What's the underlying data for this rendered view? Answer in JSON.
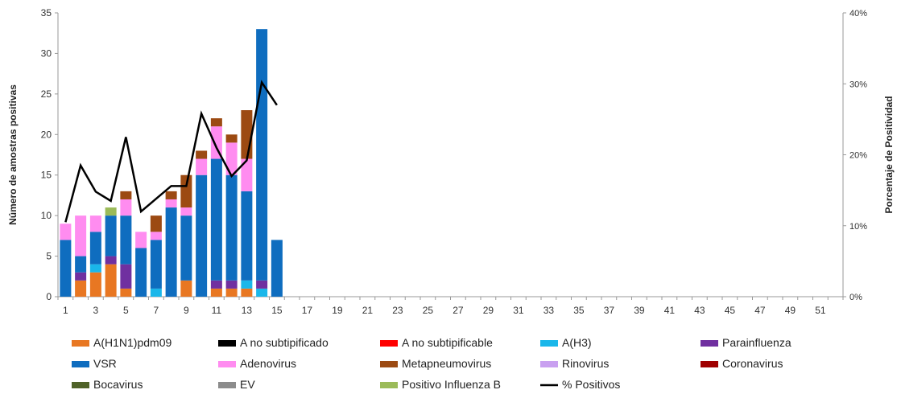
{
  "chart_data": {
    "type": "bar",
    "title": "",
    "xlabel": "",
    "ylabel": "Número de amostras positivas",
    "y2label": "Porcentaje de Positividad",
    "ylim": [
      0,
      35
    ],
    "y2lim": [
      0,
      40
    ],
    "y_ticks": [
      0,
      5,
      10,
      15,
      20,
      25,
      30,
      35
    ],
    "y_tick_labels": [
      "0",
      "5",
      "10",
      "15",
      "20",
      "25",
      "30",
      "35"
    ],
    "y2_ticks": [
      0,
      10,
      20,
      30,
      40
    ],
    "y2_tick_labels": [
      "0%",
      "10%",
      "20%",
      "30%",
      "40%"
    ],
    "x_tick_labels": [
      "1",
      "3",
      "5",
      "7",
      "9",
      "11",
      "13",
      "15",
      "17",
      "19",
      "21",
      "23",
      "25",
      "27",
      "29",
      "31",
      "33",
      "35",
      "37",
      "39",
      "41",
      "43",
      "45",
      "47",
      "49",
      "51"
    ],
    "x_weeks": 52,
    "stacked": true,
    "grid": false,
    "legend_position": "bottom",
    "categories": [
      1,
      2,
      3,
      4,
      5,
      6,
      7,
      8,
      9,
      10,
      11,
      12,
      13,
      14,
      15
    ],
    "series": [
      {
        "name": "A(H1N1)pdm09",
        "color": "#E87722",
        "values": [
          0,
          2,
          3,
          4,
          1,
          0,
          0,
          0,
          2,
          0,
          1,
          1,
          1,
          0,
          0
        ]
      },
      {
        "name": "A no subtipificado",
        "color": "#000000",
        "values": [
          0,
          0,
          0,
          0,
          0,
          0,
          0,
          0,
          0,
          0,
          0,
          0,
          0,
          0,
          0
        ]
      },
      {
        "name": "A no subtipificable",
        "color": "#FF0000",
        "values": [
          0,
          0,
          0,
          0,
          0,
          0,
          0,
          0,
          0,
          0,
          0,
          0,
          0,
          0,
          0
        ]
      },
      {
        "name": "A(H3)",
        "color": "#1AB7EA",
        "values": [
          0,
          0,
          1,
          0,
          0,
          0,
          1,
          0,
          0,
          0,
          0,
          0,
          1,
          1,
          0
        ]
      },
      {
        "name": "Parainfluenza",
        "color": "#7030A0",
        "values": [
          0,
          1,
          0,
          1,
          3,
          0,
          0,
          0,
          0,
          0,
          1,
          1,
          0,
          1,
          0
        ]
      },
      {
        "name": "VSR",
        "color": "#0F6DBF",
        "values": [
          7,
          2,
          4,
          5,
          6,
          6,
          6,
          11,
          8,
          15,
          15,
          13,
          11,
          31,
          7
        ]
      },
      {
        "name": "Adenovirus",
        "color": "#FF8CF0",
        "values": [
          2,
          5,
          2,
          0,
          2,
          2,
          1,
          1,
          1,
          2,
          4,
          4,
          4,
          0,
          0
        ]
      },
      {
        "name": "Metapneumovirus",
        "color": "#9C4A12",
        "values": [
          0,
          0,
          0,
          0,
          1,
          0,
          2,
          1,
          4,
          1,
          1,
          1,
          6,
          0,
          0
        ]
      },
      {
        "name": "Rinovirus",
        "color": "#C9A0F0",
        "values": [
          0,
          0,
          0,
          0,
          0,
          0,
          0,
          0,
          0,
          0,
          0,
          0,
          0,
          0,
          0
        ]
      },
      {
        "name": "Coronavirus",
        "color": "#A00000",
        "values": [
          0,
          0,
          0,
          0,
          0,
          0,
          0,
          0,
          0,
          0,
          0,
          0,
          0,
          0,
          0
        ]
      },
      {
        "name": "Bocavirus",
        "color": "#4F6228",
        "values": [
          0,
          0,
          0,
          0,
          0,
          0,
          0,
          0,
          0,
          0,
          0,
          0,
          0,
          0,
          0
        ]
      },
      {
        "name": "EV",
        "color": "#8C8C8C",
        "values": [
          0,
          0,
          0,
          0,
          0,
          0,
          0,
          0,
          0,
          0,
          0,
          0,
          0,
          0,
          0
        ]
      },
      {
        "name": "Positivo Influenza  B",
        "color": "#9BBB59",
        "values": [
          0,
          0,
          0,
          1,
          0,
          0,
          0,
          0,
          0,
          0,
          0,
          0,
          0,
          0,
          0
        ]
      }
    ],
    "line_series": {
      "name": "% Positivos",
      "color": "#000000",
      "axis": "right",
      "values": [
        10.5,
        18.5,
        14.8,
        13.5,
        22.5,
        12.0,
        13.8,
        15.6,
        15.6,
        25.8,
        21.0,
        17.0,
        19.2,
        30.2,
        27.0
      ]
    }
  }
}
